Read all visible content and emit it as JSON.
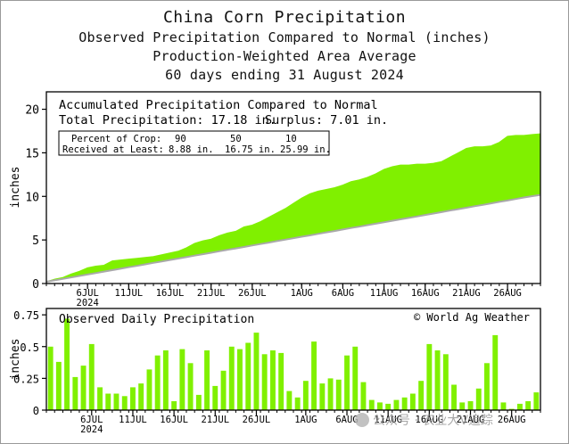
{
  "header": {
    "title": "China Corn Precipitation",
    "subtitle_1": "Observed Precipitation Compared to Normal (inches)",
    "subtitle_2": "Production-Weighted Area Average",
    "subtitle_3": "60 days ending 31 August 2024"
  },
  "top_panel": {
    "heading": "Accumulated Precipitation Compared to Normal",
    "total_label": "Total Precipitation: 17.18 in.",
    "surplus_label": "Surplus: 7.01 in.",
    "crop_row_label": "Percent of Crop:",
    "crop_values": [
      "90",
      "50",
      "10"
    ],
    "received_row_label": "Received at Least:",
    "received_values": [
      "8.88 in.",
      "16.75 in.",
      "25.99 in."
    ]
  },
  "bottom_panel": {
    "heading": "Observed Daily Precipitation",
    "credit": "© World Ag Weather"
  },
  "watermark": {
    "text": "公众号 · 农业大V追踪"
  },
  "colors": {
    "fill": "#80f000",
    "normal_line": "#a9a9a9",
    "axis": "#000000"
  },
  "chart_data": [
    {
      "type": "area",
      "title": "Accumulated Precipitation Compared to Normal",
      "xlabel": "",
      "ylabel": "inches",
      "ylim": [
        0,
        22
      ],
      "yticks": [
        0,
        5,
        10,
        15,
        20
      ],
      "xlim": [
        1,
        61
      ],
      "xtick_labels": [
        {
          "x": 6,
          "label": "6JUL",
          "sub": "2024"
        },
        {
          "x": 11,
          "label": "11JUL"
        },
        {
          "x": 16,
          "label": "16JUL"
        },
        {
          "x": 21,
          "label": "21JUL"
        },
        {
          "x": 26,
          "label": "26JUL"
        },
        {
          "x": 32,
          "label": "1AUG"
        },
        {
          "x": 37,
          "label": "6AUG"
        },
        {
          "x": 42,
          "label": "11AUG"
        },
        {
          "x": 47,
          "label": "16AUG"
        },
        {
          "x": 52,
          "label": "21AUG"
        },
        {
          "x": 57,
          "label": "26AUG"
        }
      ],
      "grid": false,
      "observed": [
        0.2,
        0.5,
        0.7,
        1.1,
        1.4,
        1.8,
        2.0,
        2.1,
        2.6,
        2.7,
        2.8,
        2.9,
        3.0,
        3.1,
        3.3,
        3.5,
        3.7,
        4.1,
        4.6,
        4.9,
        5.1,
        5.5,
        5.8,
        6.0,
        6.5,
        6.7,
        7.1,
        7.6,
        8.1,
        8.6,
        9.2,
        9.8,
        10.3,
        10.6,
        10.8,
        11.0,
        11.3,
        11.7,
        11.9,
        12.2,
        12.6,
        13.1,
        13.4,
        13.6,
        13.6,
        13.7,
        13.7,
        13.8,
        14.0,
        14.5,
        15.0,
        15.5,
        15.7,
        15.7,
        15.8,
        16.2,
        16.9,
        17.0,
        17.0,
        17.1,
        17.18
      ],
      "normal": [
        0.2,
        0.37,
        0.53,
        0.7,
        0.87,
        1.03,
        1.2,
        1.37,
        1.53,
        1.7,
        1.87,
        2.03,
        2.2,
        2.37,
        2.53,
        2.7,
        2.87,
        3.03,
        3.2,
        3.37,
        3.53,
        3.7,
        3.87,
        4.03,
        4.2,
        4.37,
        4.53,
        4.7,
        4.87,
        5.03,
        5.2,
        5.37,
        5.53,
        5.7,
        5.87,
        6.03,
        6.2,
        6.37,
        6.53,
        6.7,
        6.87,
        7.03,
        7.2,
        7.37,
        7.53,
        7.7,
        7.87,
        8.03,
        8.2,
        8.37,
        8.53,
        8.7,
        8.87,
        9.03,
        9.2,
        9.37,
        9.53,
        9.7,
        9.87,
        10.03,
        10.17
      ]
    },
    {
      "type": "bar",
      "title": "Observed Daily Precipitation",
      "xlabel": "",
      "ylabel": "inches",
      "ylim": [
        0,
        0.8
      ],
      "yticks": [
        "0",
        "0.25",
        "0.5",
        "0.75"
      ],
      "values": [
        0.5,
        0.38,
        0.72,
        0.26,
        0.35,
        0.52,
        0.18,
        0.13,
        0.13,
        0.11,
        0.18,
        0.21,
        0.32,
        0.43,
        0.47,
        0.07,
        0.48,
        0.37,
        0.12,
        0.47,
        0.19,
        0.31,
        0.5,
        0.48,
        0.53,
        0.61,
        0.44,
        0.47,
        0.45,
        0.15,
        0.1,
        0.23,
        0.54,
        0.21,
        0.25,
        0.24,
        0.43,
        0.5,
        0.22,
        0.08,
        0.06,
        0.05,
        0.08,
        0.1,
        0.13,
        0.23,
        0.52,
        0.47,
        0.44,
        0.2,
        0.06,
        0.07,
        0.17,
        0.37,
        0.59,
        0.06,
        0.01,
        0.05,
        0.07,
        0.14
      ]
    }
  ]
}
